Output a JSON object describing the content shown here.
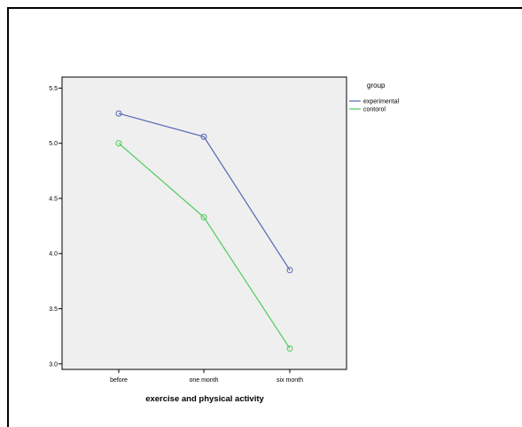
{
  "chart_data": {
    "type": "line",
    "title": "",
    "xlabel": "exercise and physical activity",
    "ylabel": "",
    "categories": [
      "before",
      "one month",
      "six month"
    ],
    "ylim": [
      2.95,
      5.6
    ],
    "yticks": [
      3.0,
      3.5,
      4.0,
      4.5,
      5.0,
      5.5
    ],
    "ytick_labels": [
      "3.0",
      "3.5",
      "4.0",
      "4.5",
      "5.0",
      "5.5"
    ],
    "grid": false,
    "plot_background": "#efefef",
    "legend": {
      "title": "group",
      "placement": "right"
    },
    "markers": "open-circle",
    "series": [
      {
        "name": "experimental",
        "color": "#5467b5",
        "values": [
          5.27,
          5.06,
          3.85
        ]
      },
      {
        "name": "contorol",
        "color": "#4ecb5a",
        "values": [
          5.0,
          4.33,
          3.14
        ]
      }
    ]
  }
}
